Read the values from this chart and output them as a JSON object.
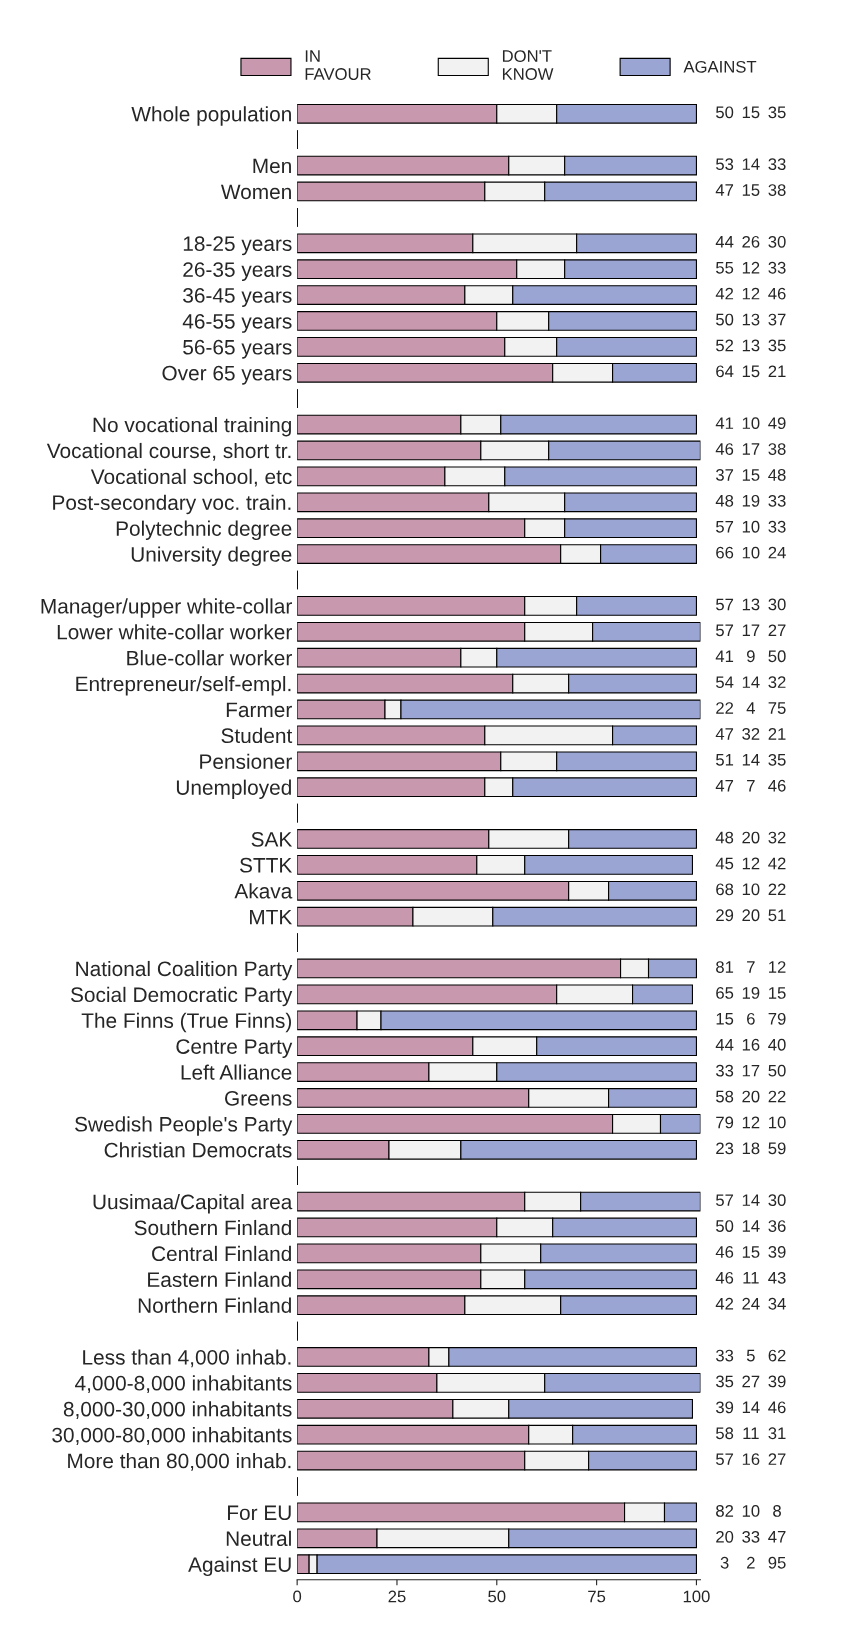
{
  "chart_data": {
    "type": "bar",
    "orientation": "horizontal",
    "stacked": true,
    "data_labels": true,
    "legend": "top",
    "grid": false,
    "xlim": [
      0,
      101
    ],
    "xticks": [
      0,
      25,
      50,
      75,
      100
    ],
    "categories": [
      "Whole population",
      null,
      "Men",
      "Women",
      null,
      "18-25 years",
      "26-35 years",
      "36-45 years",
      "46-55 years",
      "56-65 years",
      "Over 65 years",
      null,
      "No vocational training",
      "Vocational course, short tr.",
      "Vocational school, etc",
      "Post-secondary voc. train.",
      "Polytechnic degree",
      "University degree",
      null,
      "Manager/upper white-collar",
      "Lower white-collar worker",
      "Blue-collar worker",
      "Entrepreneur/self-empl.",
      "Farmer",
      "Student",
      "Pensioner",
      "Unemployed",
      null,
      "SAK",
      "STTK",
      "Akava",
      "MTK",
      null,
      "National Coalition Party",
      "Social Democratic Party",
      "The Finns (True Finns)",
      "Centre Party",
      "Left Alliance",
      "Greens",
      "Swedish People's Party",
      "Christian Democrats",
      null,
      "Uusimaa/Capital area",
      "Southern Finland",
      "Central Finland",
      "Eastern Finland",
      "Northern Finland",
      null,
      "Less than 4,000 inhab.",
      "4,000-8,000 inhabitants",
      "8,000-30,000 inhabitants",
      "30,000-80,000 inhabitants",
      "More than 80,000 inhab.",
      null,
      "For EU",
      "Neutral",
      "Against EU"
    ],
    "series": [
      {
        "name": "IN\nFAVOUR",
        "color": "#c898ae",
        "values": [
          50,
          null,
          53,
          47,
          null,
          44,
          55,
          42,
          50,
          52,
          64,
          null,
          41,
          46,
          37,
          48,
          57,
          66,
          null,
          57,
          57,
          41,
          54,
          22,
          47,
          51,
          47,
          null,
          48,
          45,
          68,
          29,
          null,
          81,
          65,
          15,
          44,
          33,
          58,
          79,
          23,
          null,
          57,
          50,
          46,
          46,
          42,
          null,
          33,
          35,
          39,
          58,
          57,
          null,
          82,
          20,
          3
        ]
      },
      {
        "name": "DON'T\nKNOW",
        "color": "#f2f2f2",
        "values": [
          15,
          null,
          14,
          15,
          null,
          26,
          12,
          12,
          13,
          13,
          15,
          null,
          10,
          17,
          15,
          19,
          10,
          10,
          null,
          13,
          17,
          9,
          14,
          4,
          32,
          14,
          7,
          null,
          20,
          12,
          10,
          20,
          null,
          7,
          19,
          6,
          16,
          17,
          20,
          12,
          18,
          null,
          14,
          14,
          15,
          11,
          24,
          null,
          5,
          27,
          14,
          11,
          16,
          null,
          10,
          33,
          2
        ]
      },
      {
        "name": "AGAINST",
        "color": "#9aa5d3",
        "values": [
          35,
          null,
          33,
          38,
          null,
          30,
          33,
          46,
          37,
          35,
          21,
          null,
          49,
          38,
          48,
          33,
          33,
          24,
          null,
          30,
          27,
          50,
          32,
          75,
          21,
          35,
          46,
          null,
          32,
          42,
          22,
          51,
          null,
          12,
          15,
          79,
          40,
          50,
          22,
          10,
          59,
          null,
          30,
          36,
          39,
          43,
          34,
          null,
          62,
          39,
          46,
          31,
          27,
          null,
          8,
          47,
          95
        ]
      }
    ]
  }
}
